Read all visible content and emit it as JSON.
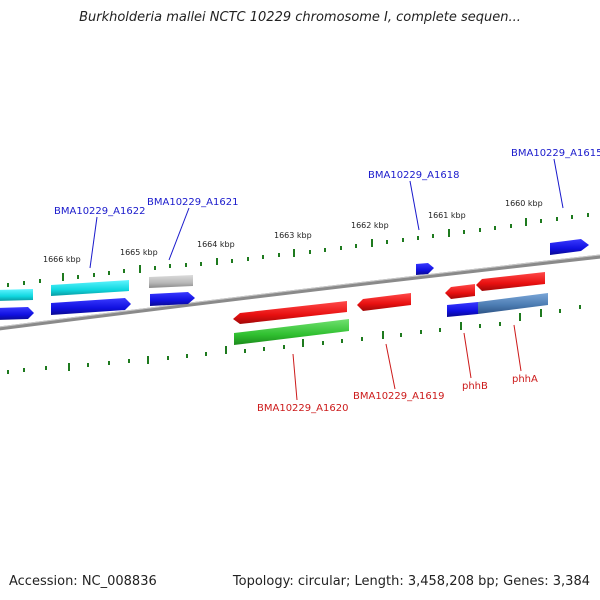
{
  "title": "Burkholderia mallei NCTC 10229 chromosome I, complete sequen...",
  "accession": "Accession: NC_008836",
  "summary": "Topology: circular; Length: 3,458,208 bp; Genes: 3,384",
  "ticks": [
    "1666 kbp",
    "1665 kbp",
    "1664 kbp",
    "1663 kbp",
    "1662 kbp",
    "1661 kbp",
    "1660 kbp"
  ],
  "genes_top": [
    "BMA10229_A1622",
    "BMA10229_A1621",
    "BMA10229_A1618",
    "BMA10229_A1615"
  ],
  "genes_bottom": [
    "BMA10229_A1620",
    "BMA10229_A1619",
    "phhB",
    "phhA"
  ],
  "colors": {
    "backbone": "#777777",
    "tick": "#1e7a1e",
    "label_top": "#1a1acc",
    "label_bottom": "#cc1a1a",
    "gene_blue": "#1010e0",
    "gene_cyan": "#10d8e0",
    "gene_gray": "#b8b8b8",
    "gene_red": "#e81010",
    "gene_green": "#30c030",
    "gene_steel": "#4a7ab0"
  }
}
